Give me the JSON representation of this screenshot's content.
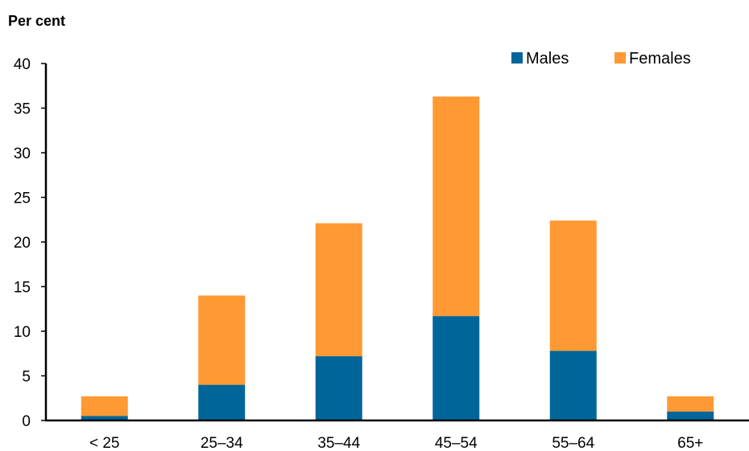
{
  "chart_data": {
    "type": "bar",
    "stacked": true,
    "ylabel": "Per cent",
    "xlabel": "",
    "categories": [
      "< 25",
      "25–34",
      "35–44",
      "45–54",
      "55–64",
      "65+"
    ],
    "series": [
      {
        "name": "Males",
        "color": "#006699",
        "values": [
          0.5,
          4.0,
          7.2,
          11.7,
          7.8,
          1.0
        ]
      },
      {
        "name": "Females",
        "color": "#FF9933",
        "values": [
          2.2,
          10.0,
          14.9,
          24.6,
          14.6,
          1.7
        ]
      }
    ],
    "ylim": [
      0,
      40
    ],
    "yticks": [
      0,
      5,
      10,
      15,
      20,
      25,
      30,
      35,
      40
    ],
    "grid": false,
    "legend_position": "top-right"
  }
}
